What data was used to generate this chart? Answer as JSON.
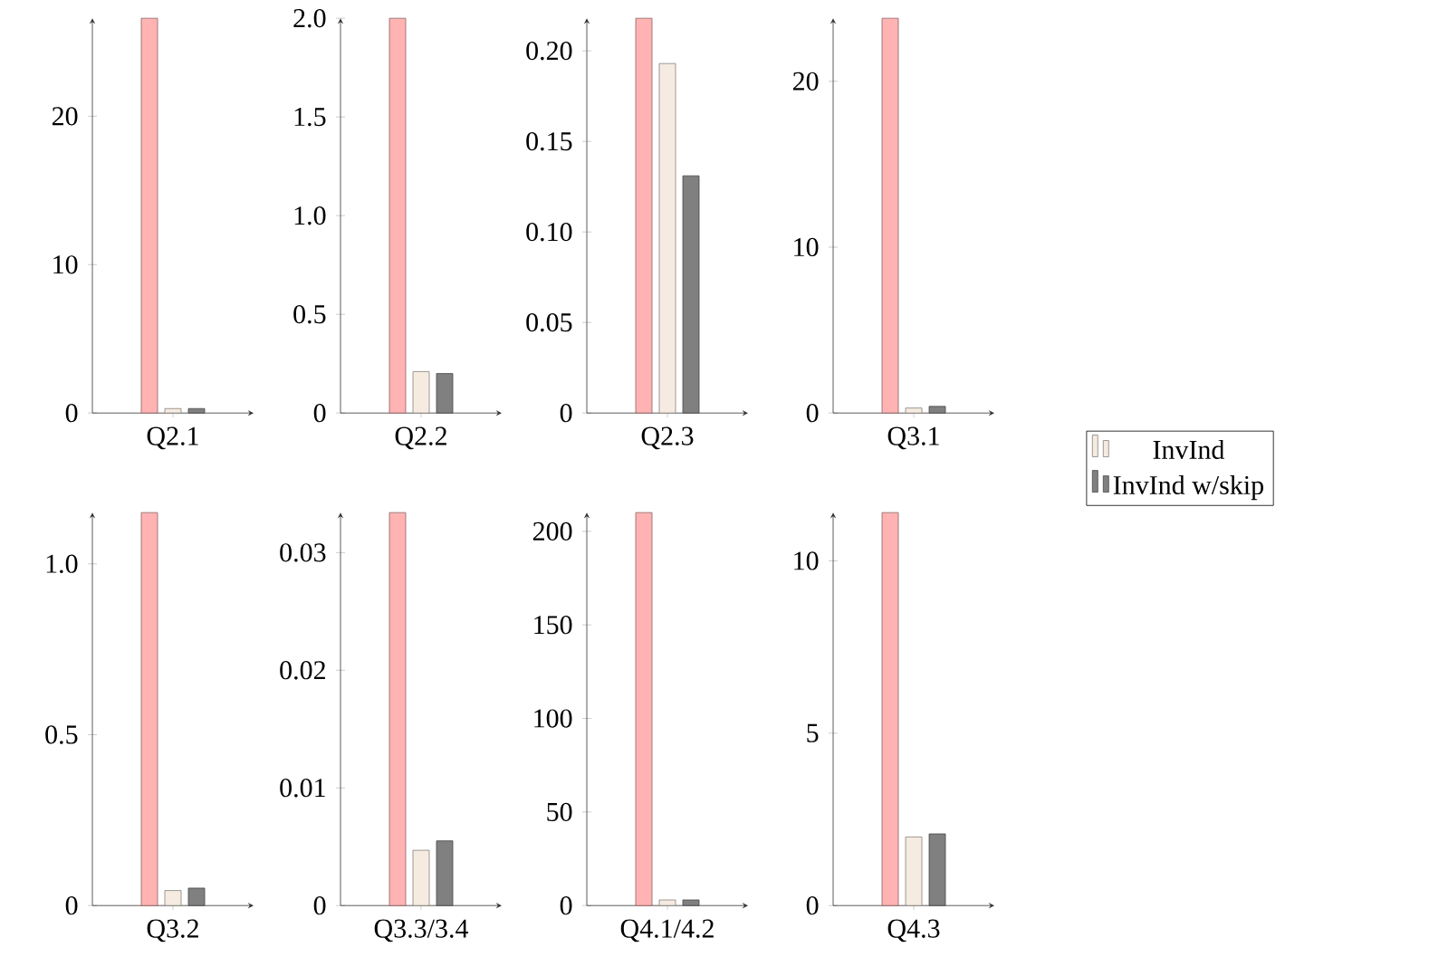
{
  "chart_data": [
    {
      "type": "bar",
      "categories": [
        "Q2.1"
      ],
      "ylim": [
        0,
        26.6
      ],
      "yticks": [
        0,
        10,
        20
      ],
      "series": [
        {
          "color": "#ffb3b3",
          "values": [
            26.6
          ]
        },
        {
          "color": "#f5ebe0",
          "values": [
            0.3
          ]
        },
        {
          "color": "#808080",
          "values": [
            0.3
          ]
        }
      ]
    },
    {
      "type": "bar",
      "categories": [
        "Q2.2"
      ],
      "ylim": [
        0,
        2.0
      ],
      "yticks": [
        0,
        0.5,
        {
          "value": 1.0,
          "label": "1.0"
        },
        1.5,
        {
          "value": 2.0,
          "label": "2.0"
        }
      ],
      "series": [
        {
          "color": "#ffb3b3",
          "values": [
            2.0
          ]
        },
        {
          "color": "#f5ebe0",
          "values": [
            0.21
          ]
        },
        {
          "color": "#808080",
          "values": [
            0.2
          ]
        }
      ]
    },
    {
      "type": "bar",
      "categories": [
        "Q2.3"
      ],
      "ylim": [
        0,
        0.218
      ],
      "yticks": [
        0,
        0.05,
        {
          "value": 0.1,
          "label": "0.10"
        },
        0.15,
        {
          "value": 0.2,
          "label": "0.20"
        }
      ],
      "series": [
        {
          "color": "#ffb3b3",
          "values": [
            0.218
          ]
        },
        {
          "color": "#f5ebe0",
          "values": [
            0.193
          ]
        },
        {
          "color": "#808080",
          "values": [
            0.131
          ]
        }
      ]
    },
    {
      "type": "bar",
      "categories": [
        "Q3.1"
      ],
      "ylim": [
        0,
        23.8
      ],
      "yticks": [
        0,
        10,
        20
      ],
      "legend": "right",
      "series": [
        {
          "color": "#ffb3b3",
          "values": [
            23.8
          ]
        },
        {
          "name": "InvInd",
          "color": "#f5ebe0",
          "values": [
            0.3
          ]
        },
        {
          "name": "InvInd w/skip",
          "color": "#808080",
          "values": [
            0.4
          ]
        }
      ]
    },
    {
      "type": "bar",
      "categories": [
        "Q3.2"
      ],
      "ylim": [
        0,
        1.15
      ],
      "yticks": [
        0,
        0.5,
        {
          "value": 1.0,
          "label": "1.0"
        }
      ],
      "series": [
        {
          "color": "#ffb3b3",
          "values": [
            1.15
          ]
        },
        {
          "color": "#f5ebe0",
          "values": [
            0.044
          ]
        },
        {
          "color": "#808080",
          "values": [
            0.051
          ]
        }
      ]
    },
    {
      "type": "bar",
      "categories": [
        "Q3.3/3.4"
      ],
      "ylim": [
        0,
        0.0334
      ],
      "yticks": [
        0,
        0.01,
        0.02,
        0.03
      ],
      "series": [
        {
          "color": "#ffb3b3",
          "values": [
            0.0334
          ]
        },
        {
          "color": "#f5ebe0",
          "values": [
            0.0047
          ]
        },
        {
          "color": "#808080",
          "values": [
            0.0055
          ]
        }
      ]
    },
    {
      "type": "bar",
      "categories": [
        "Q4.1/4.2"
      ],
      "ylim": [
        0,
        210
      ],
      "yticks": [
        0,
        50,
        100,
        150,
        200
      ],
      "series": [
        {
          "color": "#ffb3b3",
          "values": [
            210
          ]
        },
        {
          "color": "#f5ebe0",
          "values": [
            3
          ]
        },
        {
          "color": "#808080",
          "values": [
            3
          ]
        }
      ]
    },
    {
      "type": "bar",
      "categories": [
        "Q4.3"
      ],
      "ylim": [
        0,
        11.4
      ],
      "yticks": [
        0,
        5,
        10
      ],
      "series": [
        {
          "color": "#ffb3b3",
          "values": [
            11.4
          ]
        },
        {
          "color": "#f5ebe0",
          "values": [
            1.99
          ]
        },
        {
          "color": "#808080",
          "values": [
            2.08
          ]
        }
      ]
    }
  ]
}
